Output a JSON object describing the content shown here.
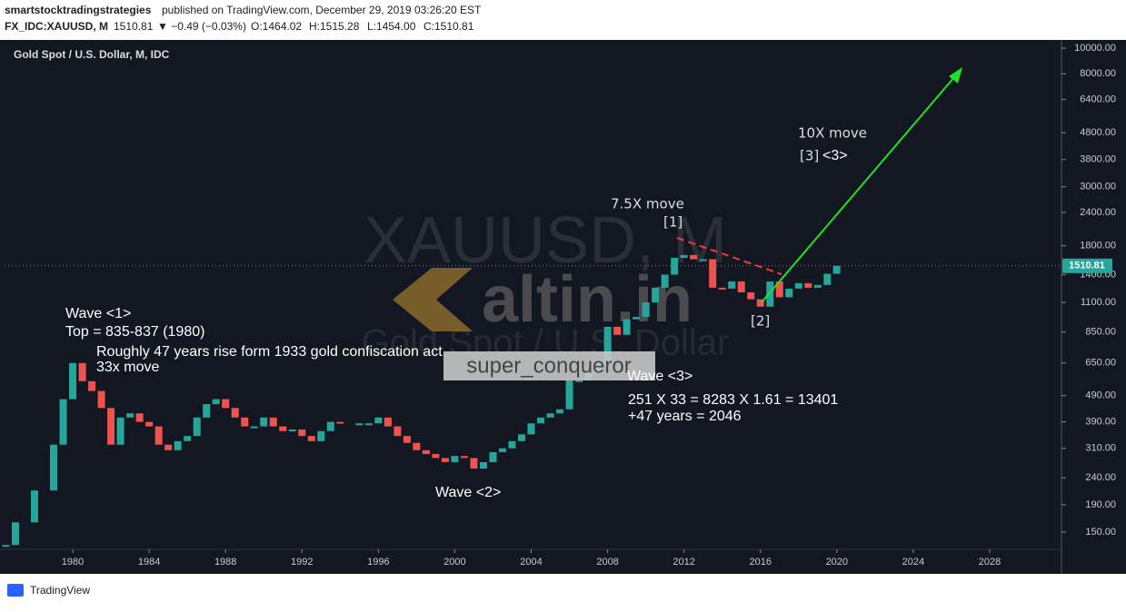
{
  "header": {
    "author": "smartstocktradingstrategies",
    "published": "published on TradingView.com, December 29, 2019 03:26:20 EST",
    "symbol": "FX_IDC:XAUUSD, M",
    "last": "1510.81",
    "change": "▼ −0.49 (−0.03%)",
    "open": "O:1464.02",
    "high": "H:1515.28",
    "low": "L:1454.00",
    "close": "C:1510.81"
  },
  "footer": {
    "brand": "TradingView"
  },
  "chart_data": {
    "type": "candlestick",
    "title": "Gold Spot / U.S. Dollar, M, IDC",
    "watermark": "XAUUSD, M",
    "watermark_sub": "Gold Spot / U.S. Dollar",
    "logo": "altin.in",
    "signature": "super_conqueror",
    "annotations": [
      "Wave <1>",
      "Top = 835-837 (1980)",
      "Roughly 47 years rise form 1933 gold confiscation act",
      "33x move",
      "Wave <2>",
      "Wave <3>",
      "251 X 33 = 8283 X 1.61 = 13401",
      "+47 years = 2046",
      "7.5X move",
      "[1]",
      "[2]",
      "10X move",
      "[3]",
      "<3>"
    ],
    "x": [
      1976.5,
      1977,
      1978,
      1979,
      1979.5,
      1980,
      1980.5,
      1981,
      1981.5,
      1982,
      1982.5,
      1983,
      1983.5,
      1984,
      1984.5,
      1985,
      1985.5,
      1986,
      1986.5,
      1987,
      1987.5,
      1988,
      1988.5,
      1989,
      1989.5,
      1990,
      1990.5,
      1991,
      1991.5,
      1992,
      1992.5,
      1993,
      1993.5,
      1994,
      1995,
      1995.5,
      1996,
      1996.5,
      1997,
      1997.5,
      1998,
      1998.5,
      1999,
      1999.5,
      2000,
      2000.5,
      2001,
      2001.5,
      2002,
      2002.5,
      2003,
      2003.5,
      2004,
      2004.5,
      2005,
      2005.5,
      2006,
      2006.5,
      2007,
      2007.5,
      2008,
      2008.5,
      2009,
      2009.5,
      2010,
      2010.5,
      2011,
      2011.5,
      2012,
      2012.5,
      2013,
      2013.5,
      2014,
      2014.5,
      2015,
      2015.5,
      2016,
      2016.5,
      2017,
      2017.5,
      2018,
      2018.5,
      2019,
      2019.5,
      2019.99
    ],
    "values": [
      134,
      163,
      215,
      320,
      475,
      650,
      555,
      510,
      440,
      320,
      405,
      420,
      390,
      375,
      320,
      305,
      330,
      345,
      405,
      455,
      475,
      440,
      405,
      375,
      375,
      405,
      375,
      360,
      365,
      345,
      330,
      360,
      390,
      385,
      385,
      385,
      405,
      375,
      345,
      325,
      305,
      295,
      285,
      275,
      290,
      285,
      260,
      275,
      300,
      310,
      330,
      350,
      385,
      405,
      420,
      435,
      560,
      560,
      600,
      650,
      890,
      830,
      950,
      970,
      1100,
      1250,
      1400,
      1620,
      1660,
      1600,
      1600,
      1250,
      1240,
      1320,
      1200,
      1130,
      1060,
      1320,
      1150,
      1240,
      1300,
      1250,
      1280,
      1410,
      1510.81
    ],
    "up_color": "#26a69a",
    "down_color": "#ef5350",
    "log_y": true,
    "xlim": [
      1976.43,
      2031.76
    ],
    "xticks": [
      1980,
      1984,
      1988,
      1992,
      1996,
      2000,
      2004,
      2008,
      2012,
      2016,
      2020,
      2024,
      2028
    ],
    "ylim": [
      129,
      10650
    ],
    "yticks": [
      {
        "value": 150,
        "label": "150.00"
      },
      {
        "value": 190,
        "label": "190.00"
      },
      {
        "value": 240,
        "label": "240.00"
      },
      {
        "value": 310,
        "label": "310.00"
      },
      {
        "value": 390,
        "label": "390.00"
      },
      {
        "value": 490,
        "label": "490.00"
      },
      {
        "value": 650,
        "label": "650.00"
      },
      {
        "value": 850,
        "label": "850.00"
      },
      {
        "value": 1100,
        "label": "1100.00"
      },
      {
        "value": 1400,
        "label": "1400.00"
      },
      {
        "value": 1800,
        "label": "1800.00"
      },
      {
        "value": 2400,
        "label": "2400.00"
      },
      {
        "value": 3000,
        "label": "3000.00"
      },
      {
        "value": 3800,
        "label": "3800.00"
      },
      {
        "value": 4800,
        "label": "4800.00"
      },
      {
        "value": 6400,
        "label": "6400.00"
      },
      {
        "value": 8000,
        "label": "8000.00"
      },
      {
        "value": 10000,
        "label": "10000.00"
      }
    ]
  }
}
